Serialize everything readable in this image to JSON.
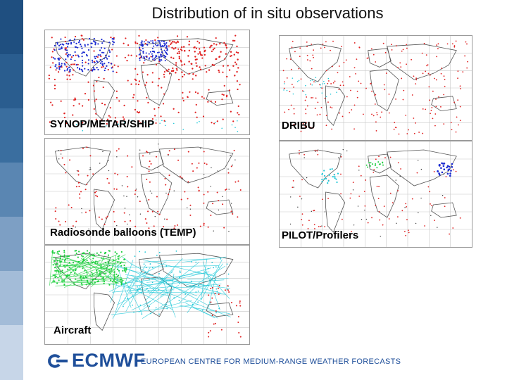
{
  "title": "Distribution of in situ observations",
  "panels": [
    {
      "id": "synop",
      "label": "SYNOP/METAR/SHIP"
    },
    {
      "id": "dribu",
      "label": "DRIBU"
    },
    {
      "id": "temp",
      "label": "Radiosonde balloons (TEMP)"
    },
    {
      "id": "pilot",
      "label": "PILOT/Profilers"
    },
    {
      "id": "aircraft",
      "label": "Aircraft"
    }
  ],
  "footer": {
    "logo_text": "ECMWF",
    "subtitle": "EUROPEAN CENTRE FOR MEDIUM-RANGE WEATHER FORECASTS"
  },
  "colors": {
    "sidebar": [
      "#1f4f80",
      "#2a5d8f",
      "#3a6e9f",
      "#5a86b2",
      "#7d9fc4",
      "#a3bcd8",
      "#c7d6e8"
    ],
    "brand": "#1f4f9a",
    "obs_red": "#e02020",
    "obs_blue": "#1a2ad0",
    "obs_green": "#20d040",
    "obs_cyan": "#20c8d8"
  }
}
